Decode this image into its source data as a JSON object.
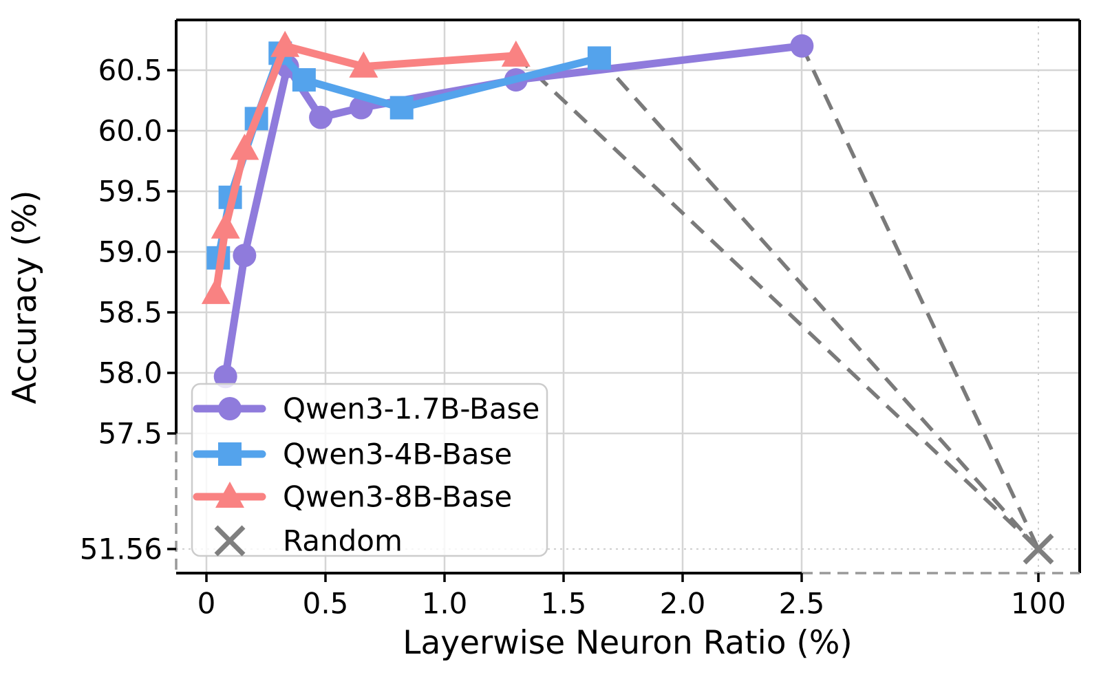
{
  "chart_data": {
    "type": "line",
    "title": "",
    "xlabel": "Layerwise Neuron Ratio (%)",
    "ylabel": "Accuracy (%)",
    "grid": "on",
    "x_ticks": [
      {
        "value": 0,
        "label": "0"
      },
      {
        "value": 0.5,
        "label": "0.5"
      },
      {
        "value": 1.0,
        "label": "1.0"
      },
      {
        "value": 1.5,
        "label": "1.5"
      },
      {
        "value": 2.0,
        "label": "2.0"
      },
      {
        "value": 2.5,
        "label": "2.5"
      },
      {
        "value": 100,
        "label": "100"
      }
    ],
    "y_ticks": [
      {
        "value": 60.5,
        "label": "60.5"
      },
      {
        "value": 60.0,
        "label": "60.0"
      },
      {
        "value": 59.5,
        "label": "59.5"
      },
      {
        "value": 59.0,
        "label": "59.0"
      },
      {
        "value": 58.5,
        "label": "58.5"
      },
      {
        "value": 58.0,
        "label": "58.0"
      },
      {
        "value": 57.5,
        "label": "57.5"
      },
      {
        "value": 51.56,
        "label": "51.56"
      }
    ],
    "axis_breaks": {
      "x_break_between": [
        2.5,
        100
      ],
      "y_break_between": [
        51.56,
        57.5
      ],
      "style": "spines drawn as gray dashes across the broken ranges"
    },
    "series": [
      {
        "name": "Qwen3-1.7B-Base",
        "marker": "circle",
        "color": "#8f7bdc",
        "x": [
          0.08,
          0.16,
          0.34,
          0.48,
          0.65,
          1.3,
          2.6
        ],
        "y": [
          57.97,
          58.97,
          60.53,
          60.11,
          60.19,
          60.42,
          60.7
        ]
      },
      {
        "name": "Qwen3-4B-Base",
        "marker": "square",
        "color": "#54a3ec",
        "x": [
          0.05,
          0.1,
          0.21,
          0.31,
          0.41,
          0.82,
          1.65
        ],
        "y": [
          58.95,
          59.45,
          60.1,
          60.64,
          60.42,
          60.19,
          60.6
        ]
      },
      {
        "name": "Qwen3-8B-Base",
        "marker": "triangle",
        "color": "#f98282",
        "x": [
          0.04,
          0.08,
          0.16,
          0.33,
          0.66,
          1.3
        ],
        "y": [
          58.66,
          59.2,
          59.85,
          60.7,
          60.53,
          60.62
        ]
      }
    ],
    "baseline_point": {
      "name": "Random",
      "marker": "x",
      "color": "#7f7f7f",
      "x": 100,
      "y": 51.56
    },
    "connectors": {
      "style": "dashed",
      "color": "#7a7a7a",
      "description": "dashed line from the last point of each series to the Random point"
    },
    "legend": {
      "position": "lower-left",
      "entries": [
        "Qwen3-1.7B-Base",
        "Qwen3-4B-Base",
        "Qwen3-8B-Base",
        "Random"
      ]
    }
  }
}
